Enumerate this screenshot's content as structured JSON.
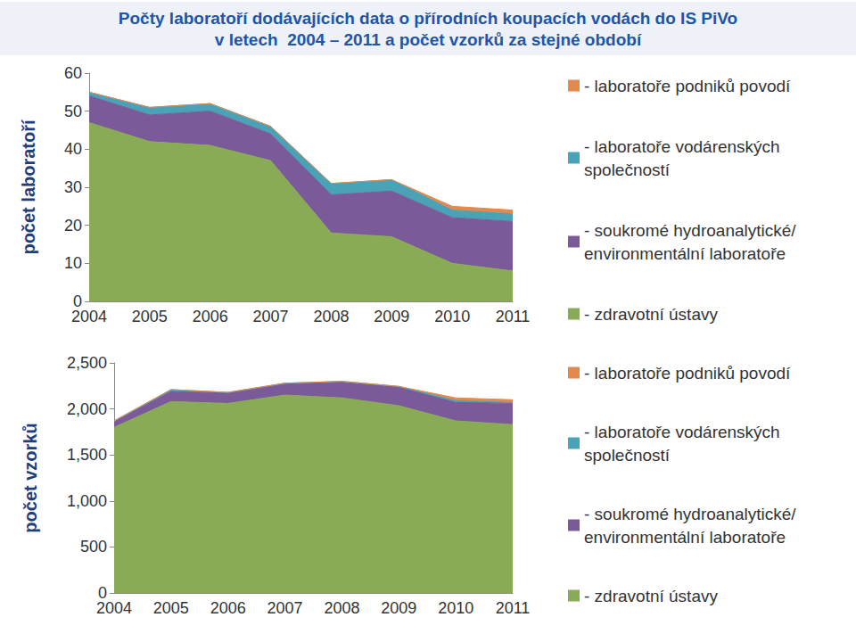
{
  "chart_data": [
    {
      "type": "area",
      "title": "Počty laboratoří dodávajících data o přírodních koupacích vodách do IS PiVo\nv letech  2004 – 2011 a počet vzorků za stejné období",
      "y_label": "počet laboratoří",
      "categories": [
        "2004",
        "2005",
        "2006",
        "2007",
        "2008",
        "2009",
        "2010",
        "2011"
      ],
      "stacked": true,
      "grid": false,
      "legend": "right",
      "ylim": [
        0,
        60
      ],
      "yticks": [
        0,
        10,
        20,
        30,
        40,
        50,
        60
      ],
      "series": [
        {
          "name": "- zdravotní ústavy",
          "color": "#8aab55",
          "values": [
            47,
            42,
            41,
            37,
            18,
            17,
            10,
            8
          ]
        },
        {
          "name": "- soukromé hydroanalytické/\nenvironmentální laboratoře",
          "color": "#7a5a98",
          "values": [
            7,
            7,
            9,
            7,
            10,
            12,
            12,
            13
          ]
        },
        {
          "name": "- laboratoře vodárenských\nspolečností",
          "color": "#4aa2b6",
          "values": [
            1,
            2,
            2,
            2,
            3,
            3,
            2,
            2
          ]
        },
        {
          "name": "- laboratoře podniků povodí",
          "color": "#e4894d",
          "values": [
            0,
            0,
            0,
            0,
            0,
            0,
            1,
            1
          ]
        }
      ]
    },
    {
      "type": "area",
      "y_label": "počet vzorků",
      "categories": [
        "2004",
        "2005",
        "2006",
        "2007",
        "2008",
        "2009",
        "2010",
        "2011"
      ],
      "stacked": true,
      "grid": false,
      "legend": "right",
      "ylim": [
        0,
        2500
      ],
      "yticks": [
        0,
        500,
        1000,
        1500,
        2000,
        2500
      ],
      "series": [
        {
          "name": "- zdravotní ústavy",
          "color": "#8aab55",
          "values": [
            1800,
            2080,
            2060,
            2150,
            2120,
            2035,
            1870,
            1830
          ]
        },
        {
          "name": "- soukromé hydroanalytické/\nenvironmentální laboratoře",
          "color": "#7a5a98",
          "values": [
            60,
            110,
            110,
            120,
            170,
            200,
            200,
            230
          ]
        },
        {
          "name": "- laboratoře vodárenských\nspolečností",
          "color": "#4aa2b6",
          "values": [
            10,
            20,
            10,
            10,
            10,
            10,
            20,
            10
          ]
        },
        {
          "name": "- laboratoře podniků povodí",
          "color": "#e4894d",
          "values": [
            0,
            0,
            0,
            0,
            0,
            0,
            30,
            30
          ]
        }
      ]
    }
  ]
}
